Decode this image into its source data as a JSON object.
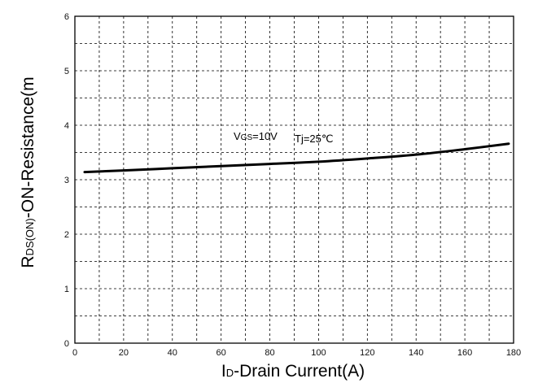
{
  "chart_data": {
    "type": "line",
    "xlabel": {
      "main_prefix": "I",
      "subscript": "D",
      "main_suffix": "-Drain Current(A)"
    },
    "ylabel": {
      "main_prefix": "R",
      "subscript": "DS(ON)",
      "main_suffix": "-ON-Resistance(m"
    },
    "xlim": [
      0,
      180
    ],
    "ylim": [
      0,
      6
    ],
    "x_ticks": [
      "0",
      "20",
      "40",
      "60",
      "80",
      "100",
      "120",
      "140",
      "160",
      "180"
    ],
    "y_ticks": [
      "0",
      "1",
      "2",
      "3",
      "4",
      "5",
      "6"
    ],
    "grid": true,
    "annotation": {
      "vgs_prefix": "V",
      "vgs_sub": "GS",
      "vgs_suffix": "=10V",
      "tj": "Tj=25℃"
    },
    "series": [
      {
        "x": [
          4,
          20,
          40,
          60,
          80,
          100,
          120,
          140,
          160,
          178
        ],
        "y": [
          3.14,
          3.17,
          3.21,
          3.25,
          3.29,
          3.33,
          3.39,
          3.46,
          3.56,
          3.66
        ]
      }
    ]
  }
}
